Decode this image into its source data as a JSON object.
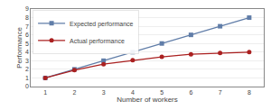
{
  "chart_data": {
    "type": "line",
    "xlabel": "Number of workers",
    "ylabel": "Performance",
    "x": [
      1,
      2,
      3,
      4,
      5,
      6,
      7,
      8
    ],
    "series": [
      {
        "name": "Expected performance",
        "color": "#607da8",
        "marker": "square",
        "values": [
          1,
          2,
          3,
          4,
          5,
          6,
          7,
          8
        ]
      },
      {
        "name": "Actual performance",
        "color": "#aa2020",
        "marker": "circle",
        "values": [
          1.0,
          1.9,
          2.6,
          3.05,
          3.45,
          3.75,
          3.9,
          4.0
        ]
      }
    ],
    "xlim": [
      0.5,
      8.5
    ],
    "ylim": [
      0,
      9
    ],
    "xticks": [
      1,
      2,
      3,
      4,
      5,
      6,
      7,
      8
    ],
    "yticks": [
      0,
      1,
      2,
      3,
      4,
      5,
      6,
      7,
      8,
      9
    ],
    "grid": "y",
    "legend": "upper left"
  }
}
